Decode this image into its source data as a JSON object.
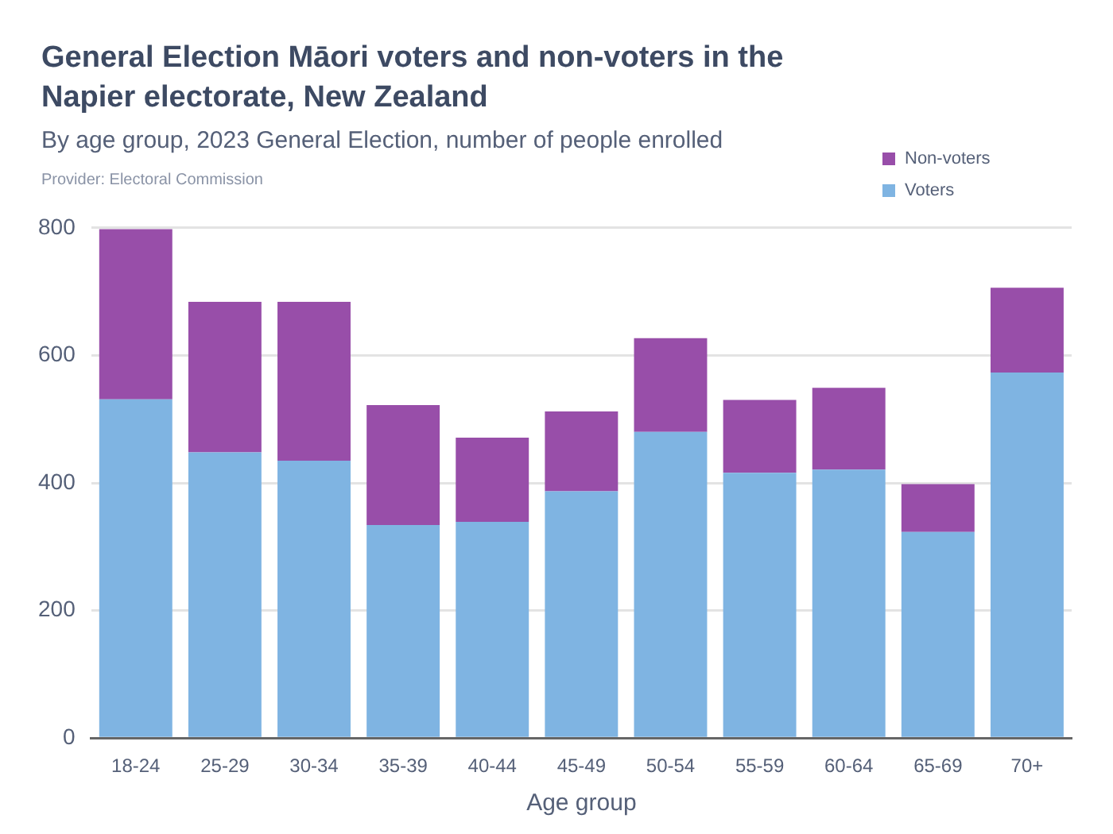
{
  "chart_data": {
    "type": "bar",
    "title": "General Election Māori voters and non-voters in the Napier electorate, New Zealand",
    "subtitle": "By age group, 2023 General Election, number of people enrolled",
    "annotations": [
      "Provider: Electoral Commission"
    ],
    "xlabel": "Age group",
    "categories": [
      "18-24",
      "25-29",
      "30-34",
      "35-39",
      "40-44",
      "45-49",
      "50-54",
      "55-59",
      "60-64",
      "65-69",
      "70+"
    ],
    "series": [
      {
        "name": "Voters",
        "color": "#7fb4e2",
        "values": [
          531,
          448,
          435,
          334,
          339,
          387,
          480,
          416,
          421,
          323,
          573
        ]
      },
      {
        "name": "Non-voters",
        "color": "#984ea9",
        "values": [
          267,
          236,
          249,
          188,
          132,
          125,
          147,
          114,
          128,
          75,
          133
        ]
      }
    ],
    "stacked": true,
    "ylim": [
      0,
      800
    ],
    "yticks": [
      0,
      200,
      400,
      600,
      800
    ],
    "grid": "y",
    "legend": "top right"
  }
}
